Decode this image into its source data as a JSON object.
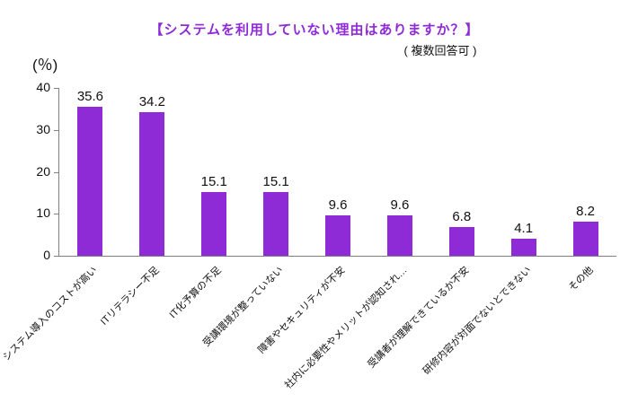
{
  "chart_data": {
    "type": "bar",
    "title": "【システムを利用していない理由はありますか？】",
    "subtitle": "( 複数回答可 )",
    "y_axis_unit_label": "(％)",
    "categories": [
      "システム導入のコストが高い",
      "ITリテラシー不足",
      "IT化予算の不足",
      "受講環境が整っていない",
      "障害やセキュリティが不安",
      "社内に必要性やメリットが認知され…",
      "受講者が理解できているか不安",
      "研修内容が対面でないとできない",
      "その他"
    ],
    "values": [
      35.6,
      34.2,
      15.1,
      15.1,
      9.6,
      9.6,
      6.8,
      4.1,
      8.2
    ],
    "ylim": [
      0,
      40
    ],
    "y_ticks": [
      0,
      10,
      20,
      30,
      40
    ],
    "bar_color": "#8e2bd6",
    "title_color": "#8e2bd6",
    "axis_color": "#808080",
    "grid": false,
    "legend": "none"
  }
}
